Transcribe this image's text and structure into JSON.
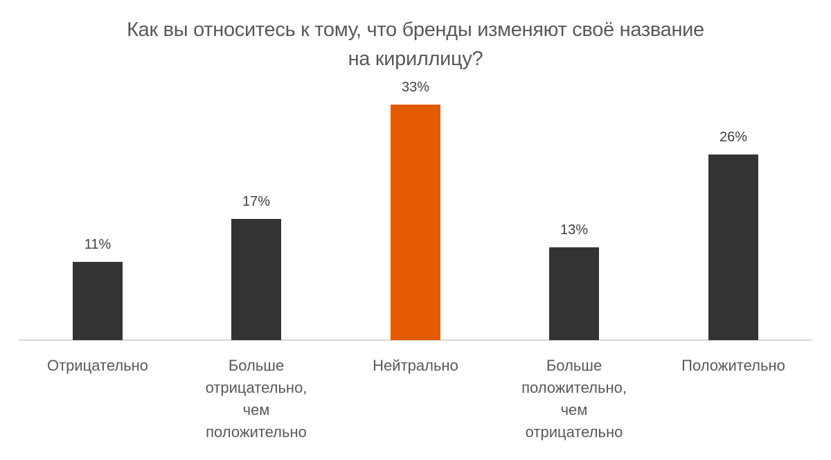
{
  "chart_data": {
    "type": "bar",
    "title": "Как вы относитесь к тому, что бренды изменяют своё название на кириллицу?",
    "title_lines": [
      "Как вы относитесь к тому, что бренды изменяют своё название",
      "на кириллицу?"
    ],
    "categories": [
      "Отрицательно",
      "Больше отрицательно, чем положительно",
      "Нейтрально",
      "Больше положительно, чем отрицательно",
      "Положительно"
    ],
    "category_lines": [
      [
        "Отрицательно"
      ],
      [
        "Больше",
        "отрицательно,",
        "чем",
        "положительно"
      ],
      [
        "Нейтрально"
      ],
      [
        "Больше",
        "положительно,",
        "чем",
        "отрицательно"
      ],
      [
        "Положительно"
      ]
    ],
    "values": [
      11,
      17,
      33,
      13,
      26
    ],
    "value_labels": [
      "11%",
      "17%",
      "33%",
      "13%",
      "26%"
    ],
    "colors": [
      "#333333",
      "#333333",
      "#e35a00",
      "#333333",
      "#333333"
    ],
    "xlabel": "",
    "ylabel": "",
    "ylim": [
      0,
      35
    ],
    "grid": false,
    "legend": "none"
  }
}
